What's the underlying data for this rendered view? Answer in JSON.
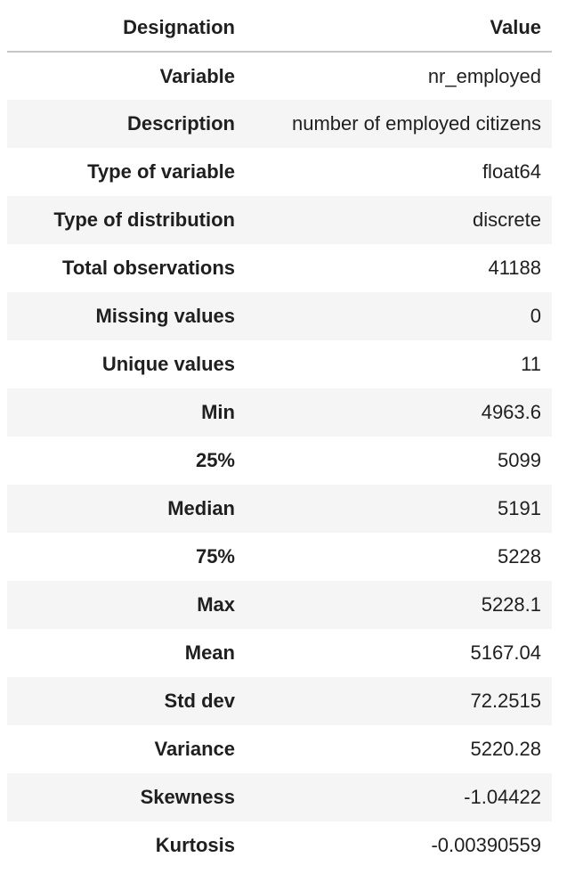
{
  "table": {
    "header": {
      "designation": "Designation",
      "value": "Value"
    },
    "rows": [
      {
        "label": "Variable",
        "value": "nr_employed"
      },
      {
        "label": "Description",
        "value": "number of employed citizens"
      },
      {
        "label": "Type of variable",
        "value": "float64"
      },
      {
        "label": "Type of distribution",
        "value": "discrete"
      },
      {
        "label": "Total observations",
        "value": "41188"
      },
      {
        "label": "Missing values",
        "value": "0"
      },
      {
        "label": "Unique values",
        "value": "11"
      },
      {
        "label": "Min",
        "value": "4963.6"
      },
      {
        "label": "25%",
        "value": "5099"
      },
      {
        "label": "Median",
        "value": "5191"
      },
      {
        "label": "75%",
        "value": "5228"
      },
      {
        "label": "Max",
        "value": "5228.1"
      },
      {
        "label": "Mean",
        "value": "5167.04"
      },
      {
        "label": "Std dev",
        "value": "72.2515"
      },
      {
        "label": "Variance",
        "value": "5220.28"
      },
      {
        "label": "Skewness",
        "value": "-1.04422"
      },
      {
        "label": "Kurtosis",
        "value": "-0.00390559"
      }
    ]
  }
}
